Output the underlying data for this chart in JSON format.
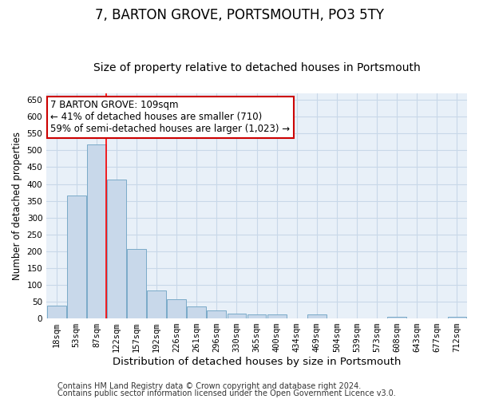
{
  "title": "7, BARTON GROVE, PORTSMOUTH, PO3 5TY",
  "subtitle": "Size of property relative to detached houses in Portsmouth",
  "xlabel": "Distribution of detached houses by size in Portsmouth",
  "ylabel": "Number of detached properties",
  "footer_line1": "Contains HM Land Registry data © Crown copyright and database right 2024.",
  "footer_line2": "Contains public sector information licensed under the Open Government Licence v3.0.",
  "categories": [
    "18sqm",
    "53sqm",
    "87sqm",
    "122sqm",
    "157sqm",
    "192sqm",
    "226sqm",
    "261sqm",
    "296sqm",
    "330sqm",
    "365sqm",
    "400sqm",
    "434sqm",
    "469sqm",
    "504sqm",
    "539sqm",
    "573sqm",
    "608sqm",
    "643sqm",
    "677sqm",
    "712sqm"
  ],
  "values": [
    38,
    365,
    518,
    413,
    207,
    84,
    58,
    36,
    25,
    15,
    11,
    11,
    0,
    13,
    0,
    0,
    0,
    5,
    0,
    0,
    5
  ],
  "bar_color": "#c8d8ea",
  "bar_edge_color": "#7aaac8",
  "bar_linewidth": 0.7,
  "red_line_x": 2.5,
  "annotation_line1": "7 BARTON GROVE: 109sqm",
  "annotation_line2": "← 41% of detached houses are smaller (710)",
  "annotation_line3": "59% of semi-detached houses are larger (1,023) →",
  "annotation_box_color": "#ffffff",
  "annotation_box_edge": "#cc0000",
  "ylim": [
    0,
    670
  ],
  "yticks": [
    0,
    50,
    100,
    150,
    200,
    250,
    300,
    350,
    400,
    450,
    500,
    550,
    600,
    650
  ],
  "grid_color": "#c8d8e8",
  "plot_bg_color": "#e8f0f8",
  "title_fontsize": 12,
  "subtitle_fontsize": 10,
  "tick_fontsize": 7.5,
  "ylabel_fontsize": 8.5,
  "xlabel_fontsize": 9.5,
  "annotation_fontsize": 8.5,
  "footer_fontsize": 7
}
